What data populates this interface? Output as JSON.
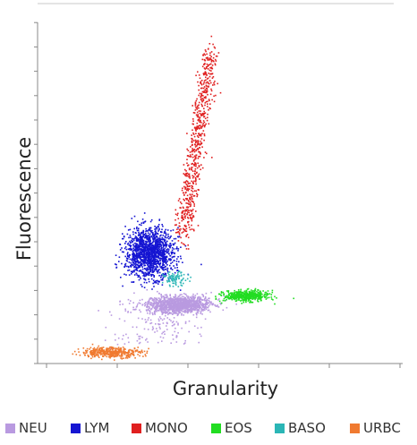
{
  "chart_data": {
    "type": "scatter",
    "title": "",
    "xlabel": "Granularity",
    "ylabel": "Fluorescence",
    "xlim": [
      0,
      1000
    ],
    "ylim": [
      0,
      1000
    ],
    "grid": false,
    "legend_position": "bottom",
    "series": [
      {
        "name": "NEU",
        "color": "#b99ae0",
        "center": [
          385,
          175
        ],
        "spread": [
          80,
          22
        ],
        "count": 1400
      },
      {
        "name": "LYM",
        "color": "#1515d2",
        "center": [
          305,
          325
        ],
        "spread": [
          60,
          65
        ],
        "count": 1500
      },
      {
        "name": "MONO",
        "color": "#e02020",
        "center": [
          430,
          560
        ],
        "spread": [
          40,
          170
        ],
        "count": 650
      },
      {
        "name": "EOS",
        "color": "#22dd22",
        "center": [
          570,
          200
        ],
        "spread": [
          55,
          14
        ],
        "count": 500
      },
      {
        "name": "BASO",
        "color": "#2bb6b6",
        "center": [
          375,
          250
        ],
        "spread": [
          30,
          18
        ],
        "count": 90
      },
      {
        "name": "URBC",
        "color": "#f07a30",
        "center": [
          200,
          35
        ],
        "spread": [
          75,
          14
        ],
        "count": 400
      }
    ]
  }
}
